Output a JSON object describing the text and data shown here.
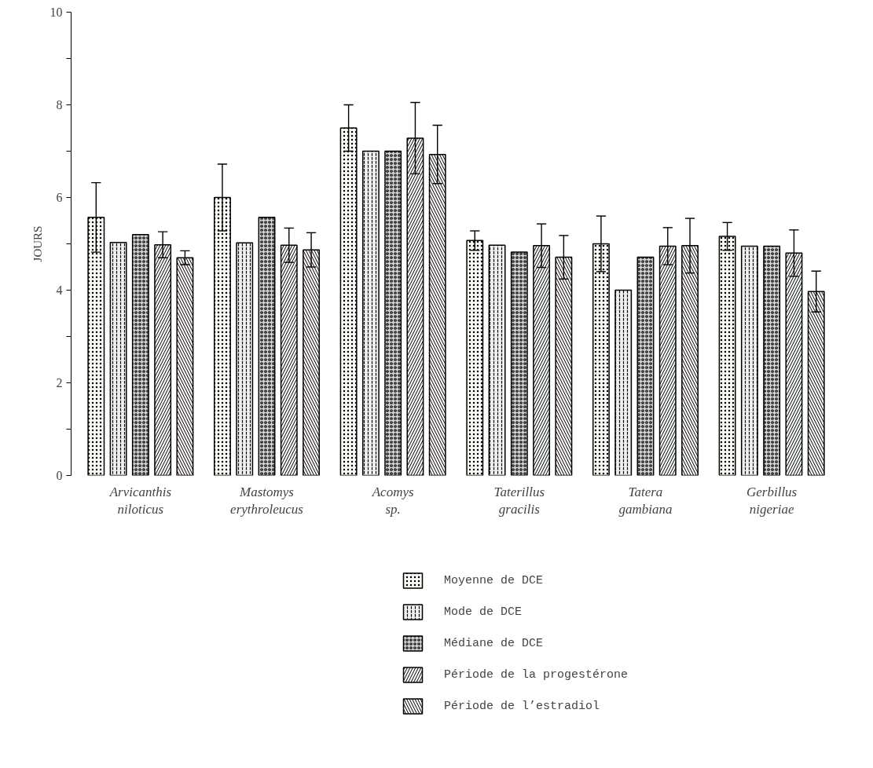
{
  "chart_data": {
    "type": "bar",
    "ylabel": "JOURS",
    "categories": [
      "Arvicanthis niloticus",
      "Mastomys erythroleucus",
      "Acomys sp.",
      "Taterillus gracilis",
      "Tatera gambiana",
      "Gerbillus nigeriae"
    ],
    "series": [
      {
        "name": "Moyenne de DCE",
        "color": "#fbfbf6",
        "values": [
          5.57,
          6.0,
          7.5,
          5.07,
          5.0,
          5.16
        ],
        "errors": [
          0.75,
          0.72,
          0.5,
          0.21,
          0.6,
          0.3
        ]
      },
      {
        "name": "Mode de DCE",
        "color": "#f0f0f0",
        "values": [
          5.03,
          5.02,
          7.0,
          4.97,
          4.0,
          4.95
        ]
      },
      {
        "name": "Médiane de DCE",
        "color": "#d6d6d6",
        "values": [
          5.2,
          5.57,
          7.0,
          4.82,
          4.71,
          4.95
        ]
      },
      {
        "name": "Période de la progestérone",
        "color": "#f6f9fb",
        "values": [
          4.98,
          4.97,
          7.28,
          4.96,
          4.95,
          4.8
        ],
        "errors": [
          0.28,
          0.37,
          0.77,
          0.47,
          0.4,
          0.5
        ]
      },
      {
        "name": "Période de l’estradiol",
        "color": "#fbf6f8",
        "values": [
          4.7,
          4.87,
          6.93,
          4.71,
          4.96,
          3.97
        ],
        "errors": [
          0.15,
          0.37,
          0.63,
          0.47,
          0.59,
          0.44
        ]
      }
    ],
    "ylim": [
      0,
      10
    ],
    "yticks": [
      0,
      {
        "value": 1,
        "label": null
      },
      2,
      {
        "value": 3,
        "label": null
      },
      4,
      {
        "value": 5,
        "label": null
      },
      6,
      {
        "value": 7,
        "label": null
      },
      8,
      {
        "value": 9,
        "label": null
      },
      10
    ],
    "grid": false,
    "legend": "bottom"
  }
}
